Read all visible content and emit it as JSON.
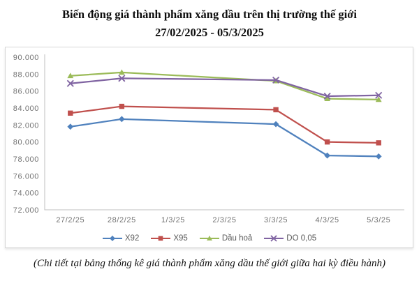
{
  "title": {
    "line1": "Biến động giá thành phẩm xăng dầu trên thị trường thế giới",
    "line2": "27/02/2025 - 05/3/2025"
  },
  "footer": "(Chi tiết tại bảng thống kê giá thành phẩm xăng dầu thế giới giữa hai kỳ điều hành)",
  "chart_data": {
    "type": "line",
    "title": "Biến động giá thành phẩm xăng dầu trên thị trường thế giới 27/02/2025 - 05/3/2025",
    "categories": [
      "27/2/25",
      "28/2/25",
      "1/3/25",
      "2/3/25",
      "3/3/25",
      "4/3/25",
      "5/3/25"
    ],
    "series": [
      {
        "name": "X92",
        "color": "#4F81BD",
        "marker": "diamond",
        "values": [
          81.8,
          82.7,
          null,
          null,
          82.1,
          78.4,
          78.3
        ]
      },
      {
        "name": "X95",
        "color": "#C0504D",
        "marker": "square",
        "values": [
          83.4,
          84.2,
          null,
          null,
          83.8,
          80.0,
          79.9
        ]
      },
      {
        "name": "Dầu hoả",
        "color": "#9BBB59",
        "marker": "triangle",
        "values": [
          87.8,
          88.2,
          null,
          null,
          87.2,
          85.1,
          85.0
        ]
      },
      {
        "name": "DO 0,05",
        "color": "#8064A2",
        "marker": "x",
        "values": [
          86.9,
          87.5,
          null,
          null,
          87.3,
          85.4,
          85.5
        ]
      }
    ],
    "ylim": [
      72,
      90
    ],
    "ytick_labels": [
      "90.000",
      "88.000",
      "86.000",
      "84.000",
      "82.000",
      "80.000",
      "78.000",
      "76.000",
      "74.000",
      "72.000"
    ],
    "xlabel": "",
    "ylabel": "",
    "grid": false,
    "legend_position": "bottom",
    "axis_color": "#BFBFBF",
    "tick_text_color": "#737373"
  }
}
